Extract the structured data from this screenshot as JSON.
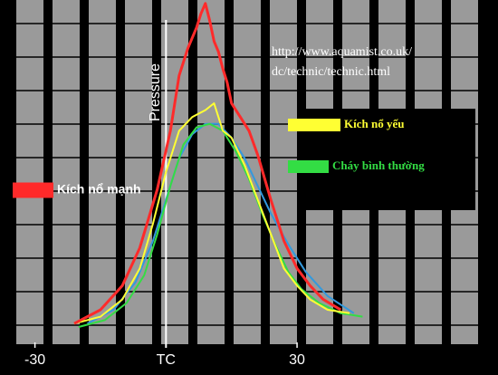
{
  "chart_data": {
    "type": "line",
    "y_label": "Pressure",
    "annotations": [
      "http://www.aquamist.co.uk/",
      "dc/technic/technic.html"
    ],
    "xlim": [
      -38,
      76
    ],
    "ylim": [
      0,
      100
    ],
    "xticks": [
      -30,
      {
        "value": 0,
        "label": "TC"
      },
      30
    ],
    "series": [
      {
        "name": "Kích nổ mạnh",
        "color": "#ff2a2a",
        "x": [
          -21,
          -15,
          -10,
          -6,
          -2,
          1,
          3,
          5,
          7,
          8,
          9,
          10,
          11,
          12,
          13,
          14,
          15,
          17,
          19,
          21,
          24,
          27,
          30,
          33,
          36,
          40
        ],
        "values": [
          6,
          10,
          17,
          28,
          45,
          62,
          78,
          86,
          92,
          96,
          99,
          94,
          88,
          85,
          80,
          76,
          70,
          66,
          62,
          55,
          42,
          30,
          22,
          17,
          13,
          10
        ]
      },
      {
        "name": "Kích nổ yếu",
        "color": "#ffff33",
        "x": [
          -21,
          -15,
          -10,
          -6,
          -3,
          0,
          3,
          6,
          9,
          11,
          13,
          15,
          18,
          21,
          24,
          27,
          30,
          33,
          37,
          42
        ],
        "values": [
          6,
          8,
          13,
          22,
          35,
          50,
          62,
          66,
          68,
          70,
          62,
          60,
          52,
          42,
          32,
          22,
          17,
          13,
          10,
          9
        ]
      },
      {
        "name": "Cháy bình thường",
        "color": "#33dd44",
        "x": [
          -20,
          -14,
          -9,
          -5,
          -2,
          1,
          4,
          7,
          10,
          13,
          16,
          19,
          22,
          25,
          28,
          31,
          35,
          40,
          45
        ],
        "values": [
          5,
          7,
          12,
          20,
          32,
          46,
          58,
          63,
          64,
          62,
          56,
          48,
          38,
          29,
          21,
          16,
          12,
          9,
          8
        ]
      },
      {
        "color": "#3399dd",
        "x": [
          -18,
          -12,
          -7,
          -3,
          0,
          3,
          6,
          9,
          12,
          15,
          18,
          21,
          24,
          28,
          32,
          37,
          43
        ],
        "values": [
          6,
          10,
          18,
          30,
          42,
          54,
          61,
          64,
          64,
          60,
          54,
          46,
          38,
          29,
          21,
          14,
          9
        ]
      }
    ]
  }
}
